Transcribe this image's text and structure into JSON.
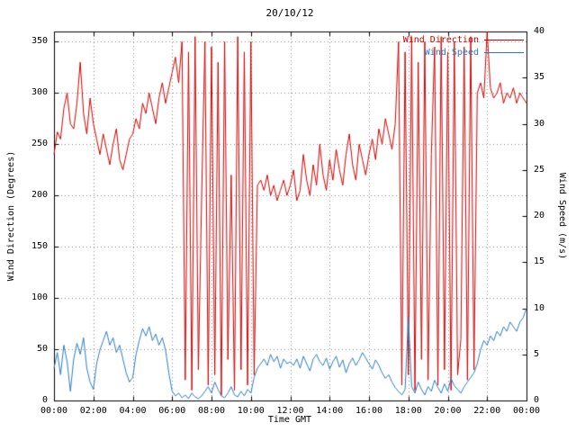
{
  "chart_data": {
    "type": "line",
    "title": "20/10/12",
    "xlabel": "Time GMT",
    "ylabel_left": "Wind Direction (Degrees)",
    "ylabel_right": "Wind Speed (m/s)",
    "grid": true,
    "legend_position": "top-right-inside",
    "x_range_hours": [
      0,
      24
    ],
    "x_ticks": [
      "00:00",
      "02:00",
      "04:00",
      "06:00",
      "08:00",
      "10:00",
      "12:00",
      "14:00",
      "16:00",
      "18:00",
      "20:00",
      "22:00",
      "00:00"
    ],
    "y_left": {
      "min": 0,
      "max": 360,
      "ticks": [
        "0",
        "50",
        "100",
        "150",
        "200",
        "250",
        "300",
        "350"
      ]
    },
    "y_right": {
      "min": 0,
      "max": 40,
      "ticks": [
        "0",
        "5",
        "10",
        "15",
        "20",
        "25",
        "30",
        "35",
        "40"
      ]
    },
    "series": [
      {
        "name": "Wind Direction",
        "color": "#cc0000",
        "axis": "left",
        "values": [
          240,
          262,
          255,
          285,
          300,
          270,
          265,
          290,
          330,
          280,
          260,
          295,
          270,
          255,
          240,
          260,
          245,
          230,
          250,
          265,
          235,
          225,
          240,
          255,
          260,
          275,
          265,
          290,
          280,
          300,
          285,
          270,
          295,
          310,
          290,
          305,
          320,
          335,
          310,
          350,
          20,
          340,
          10,
          355,
          30,
          200,
          350,
          15,
          345,
          25,
          330,
          5,
          350,
          40,
          220,
          10,
          355,
          30,
          340,
          15,
          350,
          25,
          210,
          215,
          205,
          220,
          200,
          210,
          195,
          205,
          215,
          200,
          210,
          225,
          195,
          205,
          240,
          215,
          200,
          230,
          210,
          250,
          220,
          205,
          235,
          215,
          245,
          225,
          210,
          240,
          260,
          230,
          215,
          250,
          235,
          220,
          240,
          255,
          235,
          265,
          250,
          275,
          260,
          245,
          270,
          350,
          15,
          340,
          25,
          355,
          10,
          330,
          40,
          350,
          20,
          240,
          345,
          15,
          355,
          30,
          340,
          10,
          350,
          25,
          60,
          345,
          20,
          355,
          30,
          300,
          310,
          295,
          360,
          305,
          295,
          300,
          310,
          290,
          300,
          295,
          305,
          290,
          300,
          295,
          290
        ]
      },
      {
        "name": "Wind Speed",
        "color": "#2b7cbf",
        "axis": "right",
        "values": [
          3.5,
          5.2,
          2.8,
          6.0,
          4.2,
          1.0,
          4.5,
          6.2,
          5.0,
          6.8,
          3.5,
          2.0,
          1.2,
          4.0,
          5.5,
          6.5,
          7.5,
          6.0,
          6.8,
          5.2,
          6.0,
          4.5,
          3.0,
          2.0,
          2.5,
          5.0,
          6.5,
          7.8,
          7.0,
          8.0,
          6.5,
          7.2,
          6.0,
          6.8,
          5.5,
          3.0,
          1.0,
          0.5,
          0.8,
          0.3,
          0.6,
          0.2,
          0.8,
          0.4,
          0.2,
          0.5,
          1.0,
          1.5,
          0.8,
          2.0,
          1.2,
          0.5,
          0.3,
          0.8,
          1.5,
          0.6,
          0.4,
          1.0,
          0.5,
          1.2,
          0.8,
          2.5,
          3.5,
          4.0,
          4.5,
          3.8,
          5.0,
          4.2,
          4.8,
          3.5,
          4.5,
          4.0,
          4.2,
          3.8,
          4.5,
          3.5,
          4.8,
          4.0,
          3.2,
          4.5,
          5.0,
          4.2,
          3.8,
          4.6,
          3.4,
          4.2,
          4.8,
          3.6,
          4.4,
          3.0,
          4.0,
          4.6,
          3.8,
          4.4,
          5.2,
          4.6,
          4.0,
          3.4,
          4.4,
          3.8,
          3.0,
          2.4,
          2.8,
          2.0,
          1.4,
          1.0,
          0.6,
          1.2,
          9.0,
          1.5,
          0.8,
          2.0,
          1.2,
          0.6,
          1.5,
          1.0,
          2.2,
          1.4,
          0.8,
          1.8,
          1.0,
          2.4,
          1.6,
          1.2,
          0.8,
          1.5,
          2.0,
          2.5,
          3.0,
          4.0,
          5.5,
          6.5,
          6.0,
          7.0,
          6.5,
          7.5,
          7.0,
          8.0,
          7.5,
          8.5,
          8.0,
          7.5,
          8.5,
          9.0,
          10.0
        ]
      }
    ]
  }
}
